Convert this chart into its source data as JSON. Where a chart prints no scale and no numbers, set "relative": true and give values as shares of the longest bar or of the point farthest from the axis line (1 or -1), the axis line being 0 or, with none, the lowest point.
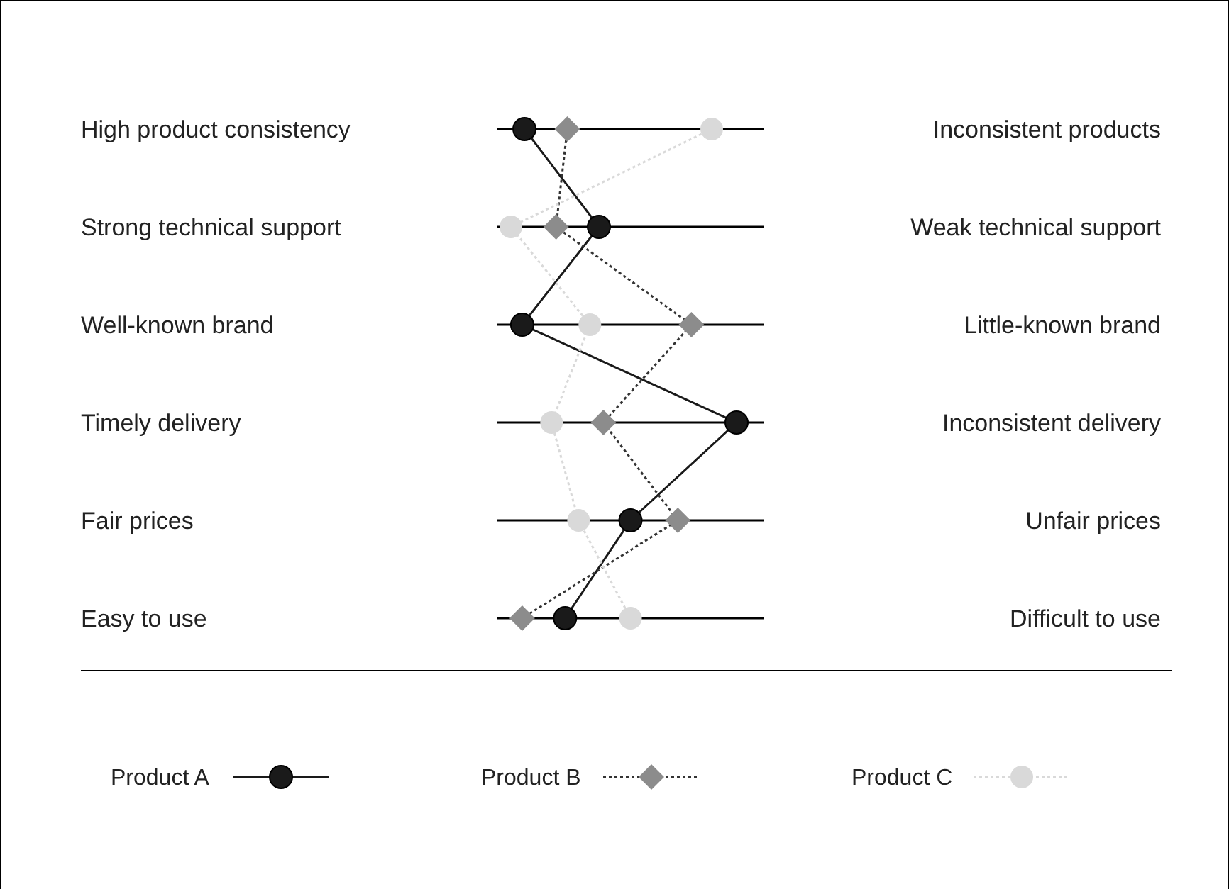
{
  "chart_data": {
    "type": "line",
    "orientation": "horizontal",
    "relative": true,
    "grid": "y",
    "legend": "bottom",
    "categories": [
      "High product consistency",
      "Strong technical support",
      "Well-known brand",
      "Timely delivery",
      "Fair prices",
      "Easy to use"
    ],
    "y2_categories": [
      "Inconsistent products",
      "Weak technical support",
      "Little-known brand",
      "Inconsistent delivery",
      "Unfair prices",
      "Difficult to use"
    ],
    "series": [
      {
        "name": "Product A",
        "color": "#1a1a1a",
        "marker": "circle",
        "line_style": "solid",
        "values": [
          0.06,
          0.39,
          0.05,
          1,
          0.53,
          0.24
        ]
      },
      {
        "name": "Product B",
        "color": "#8c8c8c",
        "marker": "diamond",
        "line_style": "dotted",
        "values": [
          0.25,
          0.2,
          0.8,
          0.41,
          0.74,
          0.05
        ]
      },
      {
        "name": "Product C",
        "color": "#d9d9d9",
        "marker": "circle",
        "line_style": "dotted",
        "values": [
          0.89,
          0,
          0.35,
          0.18,
          0.3,
          0.53
        ]
      }
    ]
  }
}
